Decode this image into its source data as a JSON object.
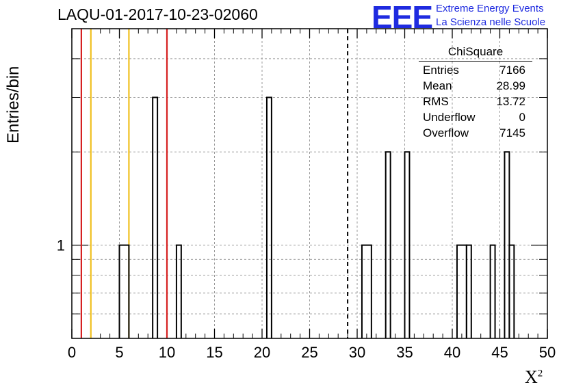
{
  "header": {
    "title": "LAQU-01-2017-10-23-02060"
  },
  "logo": {
    "mark": "EEE",
    "line1": "Extreme Energy Events",
    "line2": "La Scienza nelle Scuole",
    "color": "#1f2be0"
  },
  "stats": {
    "title": "ChiSquare",
    "rows": [
      {
        "label": "Entries",
        "value": "7166"
      },
      {
        "label": "Mean",
        "value": "28.99"
      },
      {
        "label": "RMS",
        "value": "13.72"
      },
      {
        "label": "Underflow",
        "value": "0"
      },
      {
        "label": "Overflow",
        "value": "7145"
      }
    ]
  },
  "chart_data": {
    "type": "bar",
    "xlabel": "X",
    "xlabel_sup": "2",
    "ylabel": "Entries/bin",
    "xlim": [
      0,
      50
    ],
    "x_ticks": [
      "0",
      "5",
      "10",
      "15",
      "20",
      "25",
      "30",
      "35",
      "40",
      "45",
      "50"
    ],
    "y_ticks": [
      "1"
    ],
    "y_scale": "log",
    "ylim": [
      0.5,
      5
    ],
    "grid": true,
    "bin_width": 1,
    "bins": [
      {
        "x_low": 5,
        "x_high": 6,
        "value": 1
      },
      {
        "x_low": 8.5,
        "x_high": 9,
        "value": 3
      },
      {
        "x_low": 11,
        "x_high": 11.5,
        "value": 1
      },
      {
        "x_low": 20.5,
        "x_high": 21,
        "value": 3
      },
      {
        "x_low": 30.5,
        "x_high": 31.5,
        "value": 1
      },
      {
        "x_low": 33,
        "x_high": 33.5,
        "value": 2
      },
      {
        "x_low": 35,
        "x_high": 35.5,
        "value": 2
      },
      {
        "x_low": 40.5,
        "x_high": 41.5,
        "value": 1
      },
      {
        "x_low": 41.5,
        "x_high": 42,
        "value": 1
      },
      {
        "x_low": 44,
        "x_high": 44.5,
        "value": 1
      },
      {
        "x_low": 45.5,
        "x_high": 46,
        "value": 2
      },
      {
        "x_low": 46,
        "x_high": 46.5,
        "value": 1
      }
    ],
    "reference_lines": [
      {
        "x": 1,
        "color": "#d62020",
        "style": "solid"
      },
      {
        "x": 2,
        "color": "#f0c020",
        "style": "solid"
      },
      {
        "x": 6,
        "color": "#f0c020",
        "style": "solid"
      },
      {
        "x": 10,
        "color": "#d62020",
        "style": "solid"
      },
      {
        "x": 29,
        "color": "#000000",
        "style": "dashed"
      }
    ]
  }
}
